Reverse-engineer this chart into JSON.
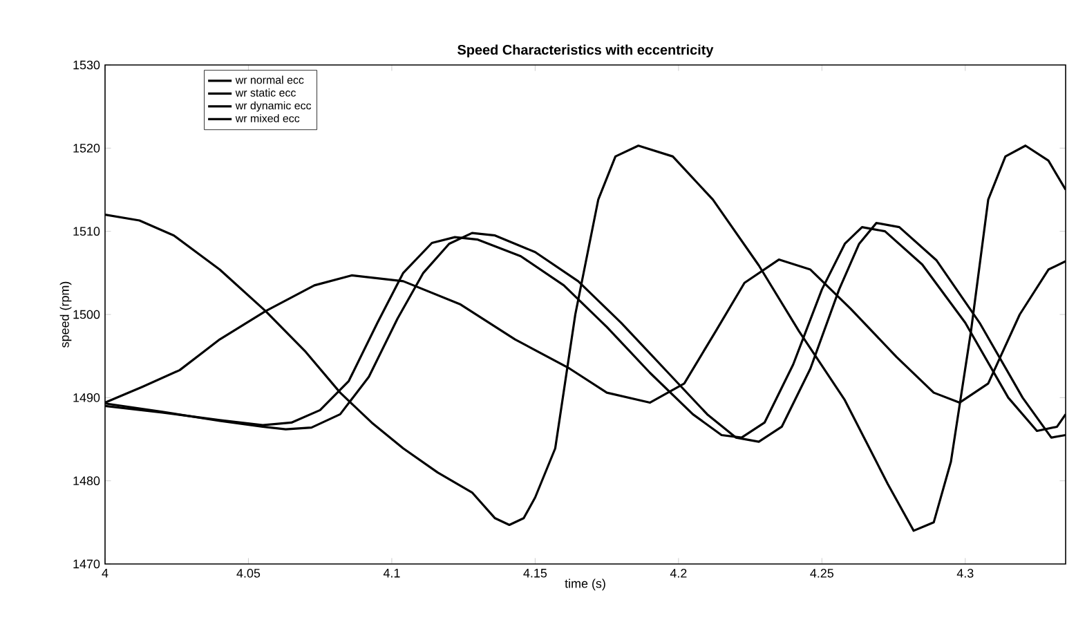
{
  "chart_data": {
    "type": "line",
    "title": "Speed Characteristics with eccentricity",
    "xlabel": "time (s)",
    "ylabel": "speed (rpm)",
    "xlim": [
      4,
      4.335
    ],
    "ylim": [
      1470,
      1530
    ],
    "xticks": [
      4,
      4.05,
      4.1,
      4.15,
      4.2,
      4.25,
      4.3
    ],
    "yticks": [
      1470,
      1480,
      1490,
      1500,
      1510,
      1520,
      1530
    ],
    "grid": false,
    "legend": "top left",
    "marker": "none",
    "line_style": "solid",
    "series": [
      {
        "name": "wr normal ecc",
        "color": "#000000",
        "x": [
          4.0,
          4.012,
          4.024,
          4.04,
          4.056,
          4.07,
          4.082,
          4.093,
          4.104,
          4.116,
          4.128,
          4.136,
          4.141,
          4.146,
          4.15,
          4.157,
          4.164,
          4.172,
          4.178,
          4.186,
          4.198,
          4.212,
          4.228,
          4.242,
          4.258,
          4.273,
          4.282,
          4.289,
          4.295,
          4.302,
          4.308,
          4.314,
          4.321,
          4.329,
          4.335
        ],
        "values": [
          1512,
          1511.3,
          1509.5,
          1505.4,
          1500.4,
          1495.5,
          1490.6,
          1487,
          1483.9,
          1481,
          1478.6,
          1475.5,
          1474.7,
          1475.5,
          1478,
          1483.9,
          1500,
          1513.8,
          1519,
          1520.3,
          1519,
          1513.8,
          1505.9,
          1498,
          1489.7,
          1479.6,
          1474,
          1475,
          1482.3,
          1498,
          1513.8,
          1519,
          1520.3,
          1518.5,
          1515
        ]
      },
      {
        "name": "wr static ecc",
        "color": "#000000",
        "x": [
          4.0,
          4.013,
          4.026,
          4.04,
          4.056,
          4.073,
          4.086,
          4.104,
          4.124,
          4.143,
          4.162,
          4.175,
          4.19,
          4.202,
          4.213,
          4.223,
          4.235,
          4.246,
          4.26,
          4.276,
          4.289,
          4.298,
          4.308,
          4.319,
          4.329,
          4.335
        ],
        "values": [
          1489.4,
          1491.3,
          1493.3,
          1497,
          1500.4,
          1503.5,
          1504.7,
          1504,
          1501.2,
          1497,
          1493.5,
          1490.6,
          1489.4,
          1491.7,
          1498,
          1503.8,
          1506.6,
          1505.4,
          1500.7,
          1494.9,
          1490.6,
          1489.4,
          1491.7,
          1500,
          1505.4,
          1506.4
        ]
      },
      {
        "name": "wr dynamic ecc",
        "color": "#000000",
        "x": [
          4.0,
          4.02,
          4.04,
          4.055,
          4.065,
          4.075,
          4.085,
          4.095,
          4.104,
          4.114,
          4.122,
          4.13,
          4.145,
          4.16,
          4.175,
          4.19,
          4.205,
          4.215,
          4.222,
          4.23,
          4.24,
          4.25,
          4.258,
          4.264,
          4.272,
          4.285,
          4.3,
          4.315,
          4.325,
          4.332,
          4.335
        ],
        "values": [
          1489,
          1488.2,
          1487.3,
          1486.7,
          1487,
          1488.5,
          1492,
          1499,
          1505,
          1508.6,
          1509.3,
          1509,
          1507,
          1503.5,
          1498.5,
          1493,
          1488,
          1485.5,
          1485.2,
          1487,
          1494,
          1503,
          1508.5,
          1510.5,
          1510,
          1506,
          1499,
          1490,
          1486,
          1486.5,
          1488
        ]
      },
      {
        "name": "wr mixed ecc",
        "color": "#000000",
        "x": [
          4.0,
          4.02,
          4.04,
          4.055,
          4.063,
          4.072,
          4.082,
          4.092,
          4.102,
          4.111,
          4.12,
          4.128,
          4.136,
          4.15,
          4.165,
          4.18,
          4.195,
          4.21,
          4.22,
          4.228,
          4.236,
          4.246,
          4.256,
          4.263,
          4.269,
          4.277,
          4.29,
          4.305,
          4.32,
          4.33,
          4.335
        ],
        "values": [
          1489.3,
          1488.3,
          1487.2,
          1486.5,
          1486.2,
          1486.4,
          1488,
          1492.5,
          1499.5,
          1505,
          1508.5,
          1509.8,
          1509.5,
          1507.5,
          1504,
          1499,
          1493.5,
          1488,
          1485.2,
          1484.7,
          1486.5,
          1493.5,
          1503,
          1508.5,
          1511,
          1510.5,
          1506.5,
          1499,
          1490,
          1485.2,
          1485.5
        ]
      }
    ]
  }
}
